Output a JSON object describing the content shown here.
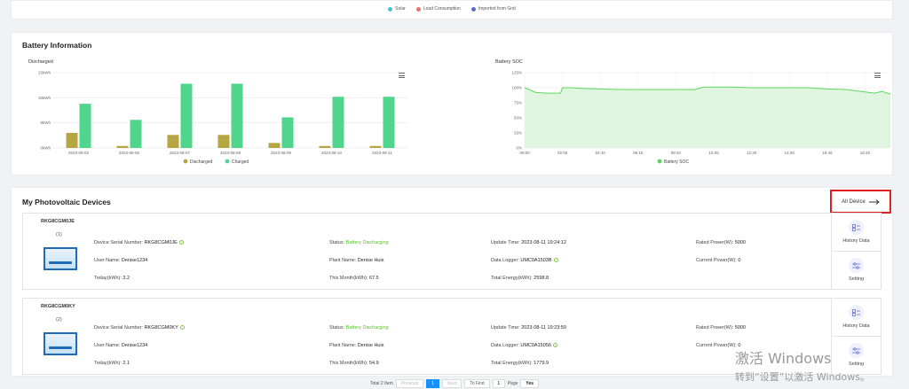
{
  "top_legend": [
    {
      "label": "Solar",
      "color": "#3fc3d9"
    },
    {
      "label": "Load Consumption",
      "color": "#f06e6e"
    },
    {
      "label": "Imported from Grid",
      "color": "#5b6ad0"
    }
  ],
  "battery": {
    "title": "Battery Information",
    "discharged_chart_title": "Discharged",
    "soc_chart_title": "Battery SOC"
  },
  "chart_data": [
    {
      "type": "bar",
      "title": "Discharged",
      "categories": [
        "2023-08-03",
        "2023-08-06",
        "2023-08-07",
        "2023-08-08",
        "2023-08-09",
        "2023-08-10",
        "2023-08-11"
      ],
      "y_ticks": [
        "0kWh",
        "5kWh",
        "10kWh",
        "15kWh"
      ],
      "ylim": [
        0,
        15
      ],
      "series": [
        {
          "name": "Discharged",
          "color": "#b5a642",
          "values": [
            3.0,
            0.4,
            2.6,
            2.6,
            1.0,
            0.4,
            0.4
          ]
        },
        {
          "name": "Charged",
          "color": "#4fd68c",
          "values": [
            8.8,
            5.6,
            12.8,
            12.8,
            6.1,
            10.2,
            10.2
          ]
        }
      ],
      "legend_position": "bottom"
    },
    {
      "type": "area",
      "title": "Battery SOC",
      "x_ticks": [
        "00:00",
        "02:05",
        "04:10",
        "06:15",
        "08:20",
        "10:25",
        "12:30",
        "14:35",
        "16:40",
        "18:45"
      ],
      "y_ticks": [
        "0%",
        "25%",
        "50%",
        "75%",
        "100%",
        "125%"
      ],
      "ylim": [
        0,
        125
      ],
      "series": [
        {
          "name": "Battery SOC",
          "color": "#5cd65c",
          "fill": "#dff5df",
          "x": [
            0,
            0.6,
            1.2,
            1.9,
            2.0,
            2.5,
            3.0,
            4.0,
            5.0,
            6.0,
            7.0,
            8.0,
            9.0,
            9.35,
            9.5,
            10.0,
            11.0,
            12.0,
            13.0,
            14.0,
            15.0,
            16.0,
            17.0,
            18.0,
            18.5,
            18.9,
            19.5
          ],
          "y": [
            100,
            92,
            91,
            91,
            100,
            100,
            99,
            98,
            97,
            97,
            97,
            97,
            97,
            100,
            101,
            101,
            101,
            100,
            100,
            100,
            100,
            98,
            97,
            93,
            91,
            94,
            88
          ]
        }
      ],
      "legend_position": "bottom"
    }
  ],
  "devices_section": {
    "title": "My Photovoltaic Devices",
    "all_device_label": "All Device",
    "devices": [
      {
        "name": "RKG8CGM0JE",
        "index": "(1)",
        "serial_label": "Device Serial Number:",
        "serial": "RKG8CGM0JE",
        "status_label": "Status:",
        "status": "Battery Discharging",
        "update_label": "Update Time:",
        "update": "2023-08-11 19:24:12",
        "rated_label": "Rated Power(W):",
        "rated": "5000",
        "user_label": "User Name:",
        "user": "Denise1234",
        "plant_label": "Plant Name:",
        "plant": "Denise Huis",
        "logger_label": "Data Logger:",
        "logger": "UMC0A1503B",
        "current_label": "Current Power(W):",
        "current": "0",
        "today_label": "Today(kWh):",
        "today": "3.2",
        "month_label": "This Month(kWh):",
        "month": "67.5",
        "total_label": "Total Energy(kWh):",
        "total": "2598.8",
        "history_label": "History Data",
        "setting_label": "Setting"
      },
      {
        "name": "RKG8CGM0KY",
        "index": "(2)",
        "serial_label": "Device Serial Number:",
        "serial": "RKG8CGM0KY",
        "status_label": "Status:",
        "status": "Battery Discharging",
        "update_label": "Update Time:",
        "update": "2023-08-11 19:23:50",
        "rated_label": "Rated Power(W):",
        "rated": "5000",
        "user_label": "User Name:",
        "user": "Denise1234",
        "plant_label": "Plant Name:",
        "plant": "Denise Huis",
        "logger_label": "Data Logger:",
        "logger": "UMC0A15056",
        "current_label": "Current Power(W):",
        "current": "0",
        "today_label": "Today(kWh):",
        "today": "2.1",
        "month_label": "This Month(kWh):",
        "month": "54.9",
        "total_label": "Total Energy(kWh):",
        "total": "1779.9",
        "history_label": "History Data",
        "setting_label": "Setting"
      }
    ]
  },
  "pagination": {
    "total": "Total 2 Item",
    "previous": "Previous",
    "current_page": "1",
    "next": "Next",
    "to_first": "To First",
    "page_input": "1",
    "page_label": "Page",
    "go": "Yes"
  },
  "watermark": {
    "line1": "激活 Windows",
    "line2": "转到“设置”以激活 Windows。"
  }
}
